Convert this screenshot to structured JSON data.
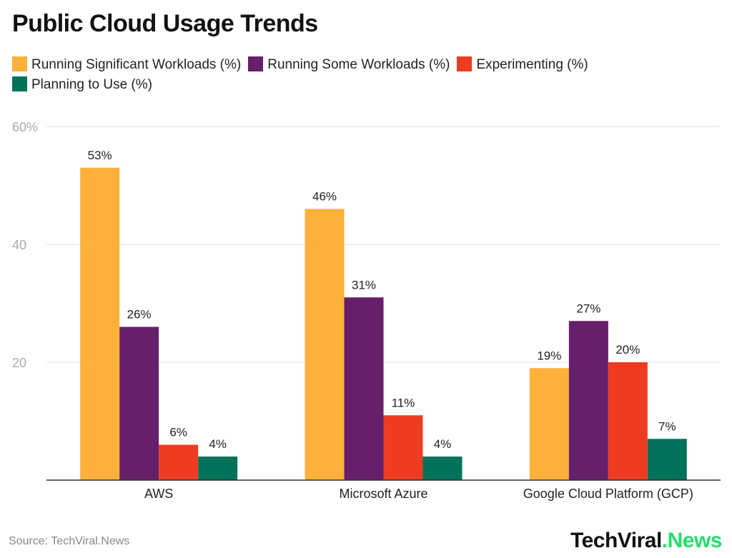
{
  "chart_data": {
    "type": "bar",
    "title": "Public Cloud Usage Trends",
    "categories": [
      "AWS",
      "Microsoft Azure",
      "Google Cloud Platform (GCP)"
    ],
    "series": [
      {
        "name": "Running Significant Workloads (%)",
        "color": "#FDB03A",
        "values": [
          53,
          46,
          19
        ],
        "labels": [
          "53%",
          "46%",
          "19%"
        ]
      },
      {
        "name": "Running Some Workloads (%)",
        "color": "#661F6B",
        "values": [
          26,
          31,
          27
        ],
        "labels": [
          "26%",
          "31%",
          "27%"
        ]
      },
      {
        "name": "Experimenting (%)",
        "color": "#EE3C22",
        "values": [
          6,
          11,
          20
        ],
        "labels": [
          "6%",
          "11%",
          "20%"
        ]
      },
      {
        "name": "Planning to Use (%)",
        "color": "#02735A",
        "values": [
          4,
          4,
          7
        ],
        "labels": [
          "4%",
          "4%",
          "7%"
        ]
      }
    ],
    "ylim": [
      0,
      60
    ],
    "yticks": [
      20,
      40,
      60
    ],
    "ytick_labels": [
      "20",
      "40",
      "60%"
    ],
    "grid": true,
    "legend": "top",
    "xlabel": "",
    "ylabel": ""
  },
  "footer": {
    "source": "Source: TechViral.News",
    "logo_main": "TechViral",
    "logo_accent": ".News"
  }
}
